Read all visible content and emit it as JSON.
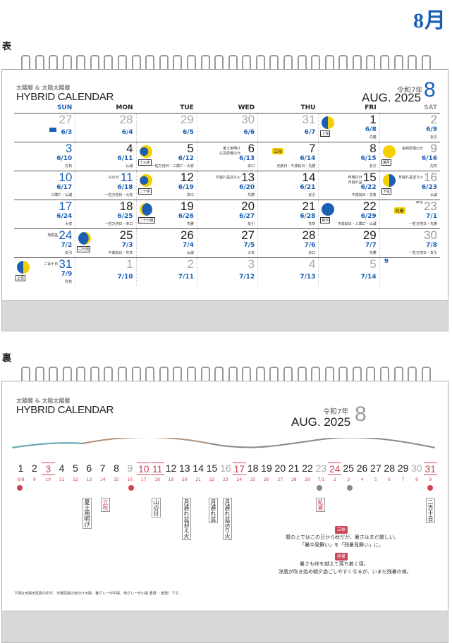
{
  "month_title": "8月",
  "front": {
    "label": "表",
    "brand_jp": "太陽暦 & 太陰太陽暦",
    "brand_en": "HYBRID CALENDAR",
    "reiwa": "令和7年",
    "month_en": "AUG. 2025",
    "month_num": "8",
    "weekdays": [
      "SUN",
      "MON",
      "TUE",
      "WED",
      "THU",
      "FRI",
      "SAT"
    ],
    "weeks": [
      [
        {
          "d": "27",
          "lu": "6/3",
          "g": true,
          "flag": true
        },
        {
          "d": "28",
          "lu": "6/4",
          "g": true
        },
        {
          "d": "29",
          "lu": "6/5",
          "g": true
        },
        {
          "d": "30",
          "lu": "6/6",
          "g": true
        },
        {
          "d": "31",
          "lu": "6/7",
          "g": true
        },
        {
          "d": "1",
          "lu": "6/8",
          "rk": "先勝",
          "moon": "first",
          "ml": "上弦"
        },
        {
          "d": "2",
          "lu": "6/9",
          "rk": "友引",
          "sat": true
        }
      ],
      [
        {
          "d": "3",
          "lu": "6/10",
          "rk": "先負",
          "sun": true
        },
        {
          "d": "4",
          "lu": "6/11",
          "rk": "仏滅"
        },
        {
          "d": "5",
          "lu": "6/12",
          "rk": "一粒万倍日・三隣亡・大安",
          "moon": "gibbous",
          "ml": "十三夜"
        },
        {
          "d": "6",
          "lu": "6/13",
          "rk": "赤口",
          "note": "夏土用明け\n広島原爆の日"
        },
        {
          "d": "7",
          "lu": "6/14",
          "rk": "天赦日・不成就日・先勝",
          "tag": "立秋"
        },
        {
          "d": "8",
          "lu": "6/15",
          "rk": "友引"
        },
        {
          "d": "9",
          "lu": "6/16",
          "rk": "先負",
          "sat": true,
          "moon": "full",
          "ml": "満月",
          "note": "長崎原爆の日"
        }
      ],
      [
        {
          "d": "10",
          "lu": "6/17",
          "rk": "三隣亡・仏滅",
          "sun": true
        },
        {
          "d": "11",
          "lu": "6/18",
          "rk": "一粒万倍日・大安",
          "sun": true,
          "note": "山の日"
        },
        {
          "d": "12",
          "lu": "6/19",
          "rk": "赤口",
          "moon": "gibbous",
          "ml": "二十夜"
        },
        {
          "d": "13",
          "lu": "6/20",
          "rk": "先勝",
          "note": "月遅れ盆迎え火"
        },
        {
          "d": "14",
          "lu": "6/21",
          "rk": "友引"
        },
        {
          "d": "15",
          "lu": "6/22",
          "rk": "不成就日・先負",
          "note": "終戦の日\n月遅れ盆"
        },
        {
          "d": "16",
          "lu": "6/23",
          "rk": "仏滅",
          "sat": true,
          "moon": "last",
          "ml": "下弦",
          "note": "月遅れ盆送り火"
        }
      ],
      [
        {
          "d": "17",
          "lu": "6/24",
          "rk": "大安",
          "sun": true
        },
        {
          "d": "18",
          "lu": "6/25",
          "rk": "一粒万倍日・赤口"
        },
        {
          "d": "19",
          "lu": "6/26",
          "rk": "先勝",
          "moon": "crescent",
          "ml": "二十六夜"
        },
        {
          "d": "20",
          "lu": "6/27",
          "rk": "友引"
        },
        {
          "d": "21",
          "lu": "6/28",
          "rk": "先負"
        },
        {
          "d": "22",
          "lu": "6/29",
          "rk": "不成就日・三隣亡・仏滅",
          "moon": "new",
          "ml": "新月"
        },
        {
          "d": "23",
          "lu": "7/1",
          "rk": "一粒万倍日・先勝",
          "sat": true,
          "tag": "処暑",
          "note": "甲子"
        }
      ],
      [
        {
          "d": "24",
          "lu": "7/2",
          "rk": "友引",
          "sun": true,
          "note": "地蔵盆"
        },
        {
          "d": "25",
          "lu": "7/3",
          "rk": "不成就日・先負",
          "moon": "crescent2",
          "ml": "三日月"
        },
        {
          "d": "26",
          "lu": "7/4",
          "rk": "仏滅"
        },
        {
          "d": "27",
          "lu": "7/5",
          "rk": "大安"
        },
        {
          "d": "28",
          "lu": "7/6",
          "rk": "赤口"
        },
        {
          "d": "29",
          "lu": "7/7",
          "rk": "先勝"
        },
        {
          "d": "30",
          "lu": "7/8",
          "rk": "一粒万倍日・友引",
          "sat": true
        }
      ],
      [
        {
          "d": "31",
          "lu": "7/9",
          "rk": "先負",
          "sun": true,
          "moon": "first",
          "ml": "上弦",
          "note": "二百十日"
        },
        {
          "d": "1",
          "lu": "7/10",
          "g": true
        },
        {
          "d": "2",
          "lu": "7/11",
          "g": true
        },
        {
          "d": "3",
          "lu": "7/12",
          "g": true
        },
        {
          "d": "4",
          "lu": "7/13",
          "g": true
        },
        {
          "d": "5",
          "lu": "7/14",
          "g": true
        },
        {
          "mini": true
        }
      ]
    ],
    "mini_month": "9"
  },
  "back": {
    "label": "裏",
    "brand_jp": "太陽暦 & 太陰太陽暦",
    "brand_en": "HYBRID CALENDAR",
    "reiwa": "令和7年",
    "month_en": "AUG. 2025",
    "month_num": "8",
    "days": [
      "1",
      "2",
      "3",
      "4",
      "5",
      "6",
      "7",
      "8",
      "9",
      "10",
      "11",
      "12",
      "13",
      "14",
      "15",
      "16",
      "17",
      "18",
      "19",
      "20",
      "21",
      "22",
      "23",
      "24",
      "25",
      "26",
      "27",
      "28",
      "29",
      "30",
      "31"
    ],
    "lunar": [
      "6/8",
      "9",
      "10",
      "11",
      "12",
      "13",
      "14",
      "15",
      "16",
      "17",
      "18",
      "19",
      "20",
      "21",
      "22",
      "23",
      "24",
      "25",
      "26",
      "27",
      "28",
      "29",
      "7/1",
      "2",
      "3",
      "4",
      "5",
      "6",
      "7",
      "8",
      "9"
    ],
    "events": [
      "夏土用明け",
      "立秋",
      "山の日",
      "月遅れ盆迎え火",
      "月遅れ盆",
      "月遅れ盆送り火",
      "処暑",
      "二百十日"
    ],
    "risshu_label": "立秋",
    "risshu_text1": "暦の上ではこの日から秋だが、暑さはまだ厳しい。",
    "risshu_text2": "「暑中見舞い」を「残暑見舞い」に。",
    "shosho_label": "処暑",
    "shosho_text1": "暑さも峠を越えて落ち着く頃。",
    "shosho_text2": "涼風が吹き始め朝夕過ごしやすくなるが、いまだ残暑の候。",
    "footnote": "下図は太陽太陰暦の中行、日曜陰陽の色分け大陽、暑グレーが中陽、旬グレーが小陽 愚暦 ・乾隆）です。"
  }
}
